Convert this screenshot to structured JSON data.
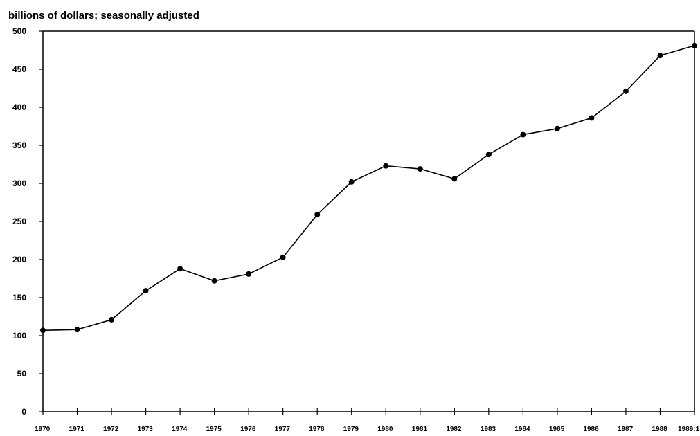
{
  "chart_data": {
    "type": "line",
    "title": "billions of dollars; seasonally adjusted",
    "xlabel": "",
    "ylabel": "",
    "categories": [
      "1970",
      "1971",
      "1972",
      "1973",
      "1974",
      "1975",
      "1976",
      "1977",
      "1978",
      "1979",
      "1980",
      "1981",
      "1982",
      "1983",
      "1984",
      "1985",
      "1986",
      "1987",
      "1988",
      "1989:1"
    ],
    "series": [
      {
        "values": [
          107,
          108,
          121,
          159,
          188,
          172,
          181,
          203,
          259,
          302,
          323,
          319,
          306,
          338,
          364,
          372,
          386,
          421,
          468,
          481
        ]
      }
    ],
    "ylim": [
      0,
      500
    ],
    "yticks": [
      "0",
      "50",
      "100",
      "150",
      "200",
      "250",
      "300",
      "350",
      "400",
      "450",
      "500"
    ],
    "grid": false,
    "marker": "filled-circle",
    "line_color": "#000000"
  }
}
